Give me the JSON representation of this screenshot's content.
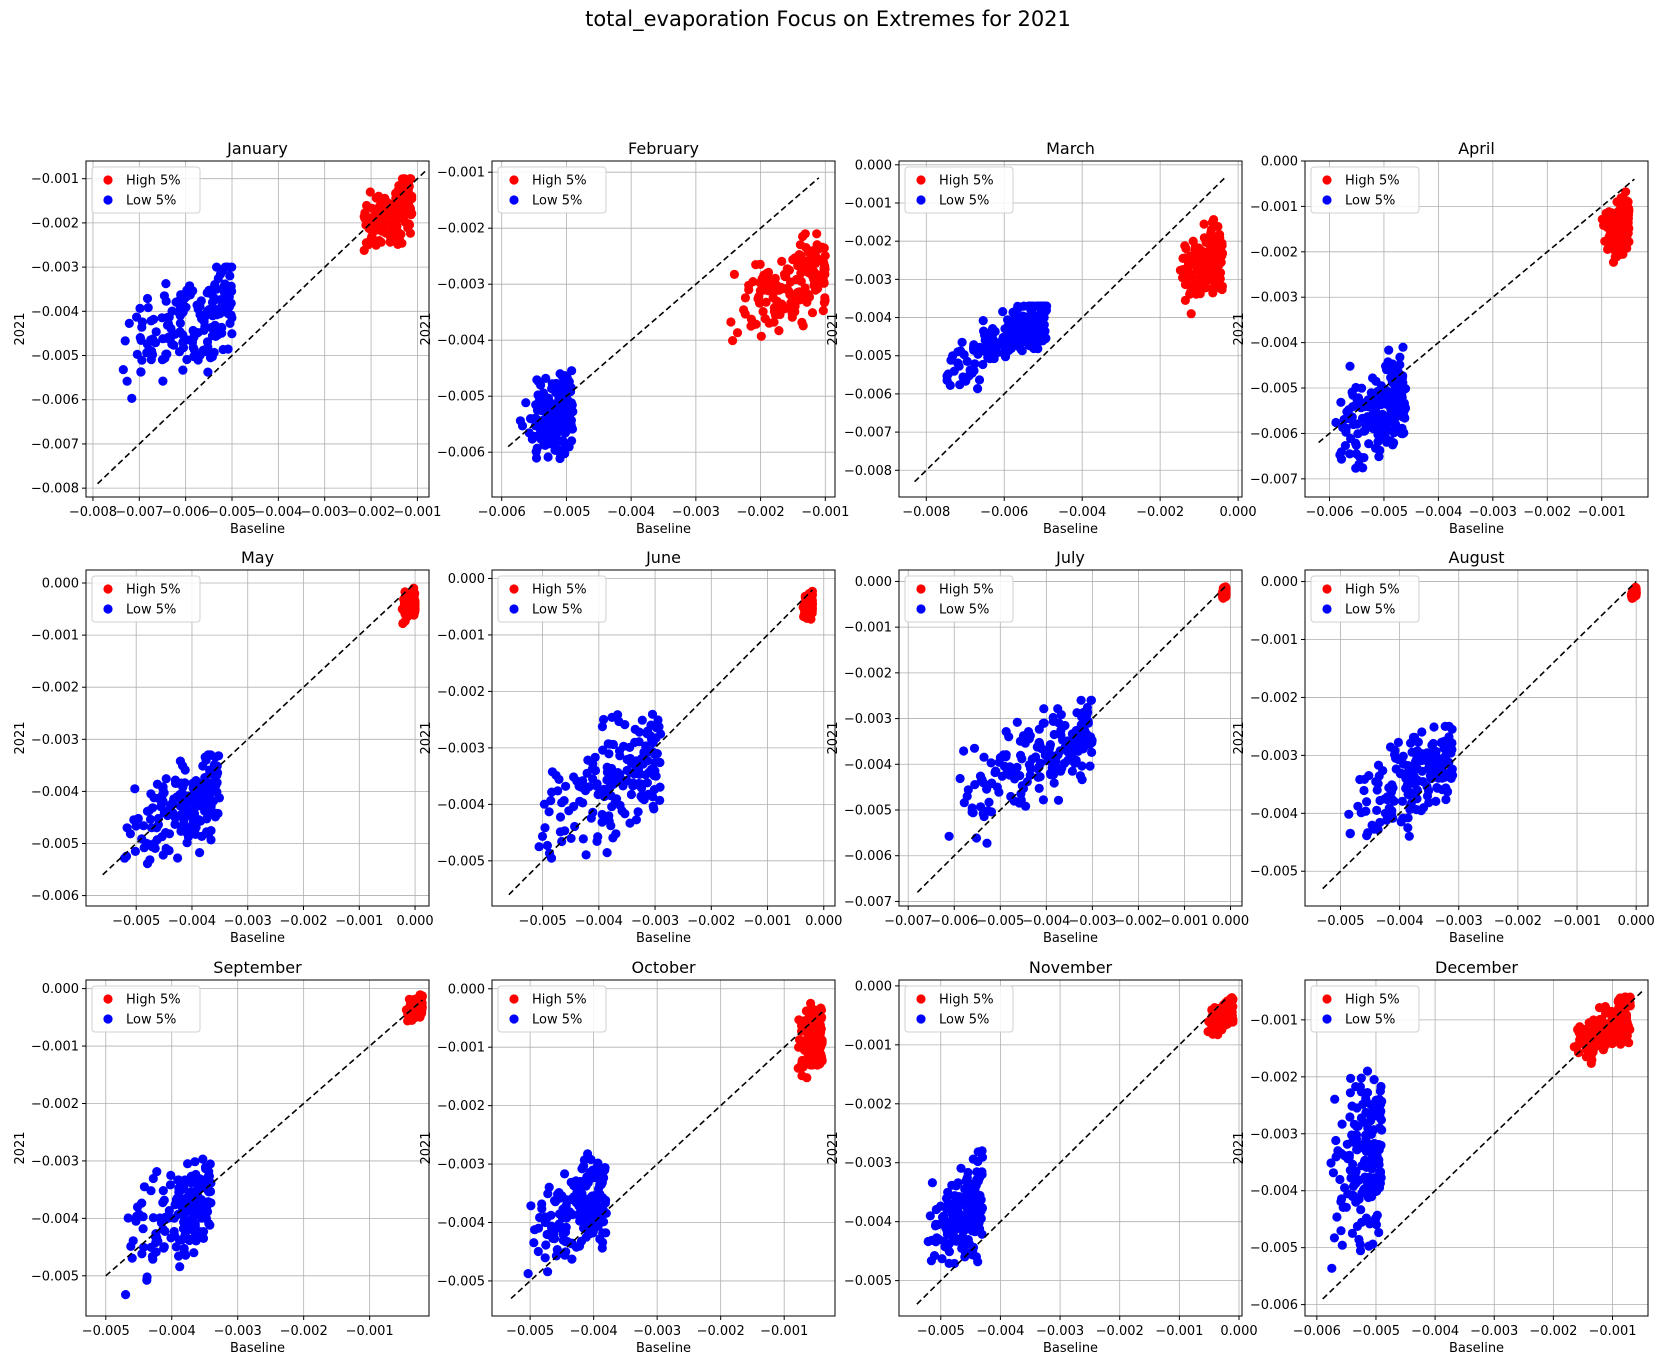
{
  "suptitle": "total_evaporation Focus on Extremes for 2021",
  "colors": {
    "high": "#ff0000",
    "low": "#0000ff",
    "identity": "#000000",
    "grid": "#b0b0b0"
  },
  "chart_data": [
    {
      "type": "scatter",
      "title": "January",
      "xlabel": "Baseline",
      "ylabel": "2021",
      "legend": [
        "High 5%",
        "Low 5%"
      ],
      "legend_loc": "upper left",
      "grid": true,
      "xlim": [
        -0.00815,
        -0.00075
      ],
      "ylim": [
        -0.0082,
        -0.0006
      ],
      "xticks": [
        -0.008,
        -0.007,
        -0.006,
        -0.005,
        -0.004,
        -0.003,
        -0.002,
        -0.001
      ],
      "yticks": [
        -0.008,
        -0.007,
        -0.006,
        -0.005,
        -0.004,
        -0.003,
        -0.002,
        -0.001
      ],
      "identity": [
        -0.0079,
        -0.0008
      ],
      "high": {
        "x": [
          -0.0025,
          -0.0011
        ],
        "y": [
          -0.0029,
          -0.001
        ]
      },
      "low": {
        "x": [
          -0.0078,
          -0.005
        ],
        "y": [
          -0.0061,
          -0.003
        ]
      }
    },
    {
      "type": "scatter",
      "title": "February",
      "xlabel": "Baseline",
      "ylabel": "2021",
      "legend": [
        "High 5%",
        "Low 5%"
      ],
      "legend_loc": "upper left",
      "grid": true,
      "xlim": [
        -0.00615,
        -0.00085
      ],
      "ylim": [
        -0.0068,
        -0.0008
      ],
      "xticks": [
        -0.006,
        -0.005,
        -0.004,
        -0.003,
        -0.002,
        -0.001
      ],
      "yticks": [
        -0.006,
        -0.005,
        -0.004,
        -0.003,
        -0.002,
        -0.001
      ],
      "identity": [
        -0.0059,
        -0.0011
      ],
      "high": {
        "x": [
          -0.0028,
          -0.001
        ],
        "y": [
          -0.0043,
          -0.0021
        ]
      },
      "low": {
        "x": [
          -0.0059,
          -0.0049
        ],
        "y": [
          -0.0066,
          -0.0043
        ]
      }
    },
    {
      "type": "scatter",
      "title": "March",
      "xlabel": "Baseline",
      "ylabel": "2021",
      "legend": [
        "High 5%",
        "Low 5%"
      ],
      "legend_loc": "upper left",
      "grid": true,
      "xlim": [
        -0.0087,
        0.0001
      ],
      "ylim": [
        -0.0087,
        0.0001
      ],
      "xticks": [
        -0.008,
        -0.006,
        -0.004,
        -0.002,
        0.0
      ],
      "yticks": [
        -0.008,
        -0.007,
        -0.006,
        -0.005,
        -0.004,
        -0.003,
        -0.002,
        -0.001,
        0.0
      ],
      "identity": [
        -0.0083,
        -0.0003
      ],
      "high": {
        "x": [
          -0.0017,
          -0.0004
        ],
        "y": [
          -0.004,
          -0.0014
        ]
      },
      "low": {
        "x": [
          -0.0083,
          -0.0049
        ],
        "y": [
          -0.0061,
          -0.0037
        ]
      }
    },
    {
      "type": "scatter",
      "title": "April",
      "xlabel": "Baseline",
      "ylabel": "2021",
      "legend": [
        "High 5%",
        "Low 5%"
      ],
      "legend_loc": "upper left",
      "grid": true,
      "xlim": [
        -0.00645,
        -0.00015
      ],
      "ylim": [
        -0.0074,
        0.0
      ],
      "xticks": [
        -0.006,
        -0.005,
        -0.004,
        -0.003,
        -0.002,
        -0.001
      ],
      "yticks": [
        -0.007,
        -0.006,
        -0.005,
        -0.004,
        -0.003,
        -0.002,
        -0.001,
        0.0
      ],
      "identity": [
        -0.0062,
        -0.0004
      ],
      "high": {
        "x": [
          -0.0011,
          -0.0005
        ],
        "y": [
          -0.0024,
          -0.0006
        ]
      },
      "low": {
        "x": [
          -0.0062,
          -0.0046
        ],
        "y": [
          -0.0072,
          -0.0041
        ]
      }
    },
    {
      "type": "scatter",
      "title": "May",
      "xlabel": "Baseline",
      "ylabel": "2021",
      "legend": [
        "High 5%",
        "Low 5%"
      ],
      "legend_loc": "upper left",
      "grid": true,
      "xlim": [
        -0.0059,
        0.00025
      ],
      "ylim": [
        -0.0062,
        0.00025
      ],
      "xticks": [
        -0.005,
        -0.004,
        -0.003,
        -0.002,
        -0.001,
        0.0
      ],
      "yticks": [
        -0.006,
        -0.005,
        -0.004,
        -0.003,
        -0.002,
        -0.001,
        0.0
      ],
      "identity": [
        -0.0056,
        0.0
      ],
      "high": {
        "x": [
          -0.0003,
          0.0
        ],
        "y": [
          -0.0008,
          -0.0001
        ]
      },
      "low": {
        "x": [
          -0.0056,
          -0.0035
        ],
        "y": [
          -0.0059,
          -0.0033
        ]
      }
    },
    {
      "type": "scatter",
      "title": "June",
      "xlabel": "Baseline",
      "ylabel": "2021",
      "legend": [
        "High 5%",
        "Low 5%"
      ],
      "legend_loc": "upper left",
      "grid": true,
      "xlim": [
        -0.0059,
        0.0002
      ],
      "ylim": [
        -0.0058,
        0.00015
      ],
      "xticks": [
        -0.005,
        -0.004,
        -0.003,
        -0.002,
        -0.001,
        0.0
      ],
      "yticks": [
        -0.005,
        -0.004,
        -0.003,
        -0.002,
        -0.001,
        0.0
      ],
      "identity": [
        -0.0056,
        -0.0002
      ],
      "high": {
        "x": [
          -0.0004,
          -0.0002
        ],
        "y": [
          -0.0008,
          -0.0002
        ]
      },
      "low": {
        "x": [
          -0.0056,
          -0.0029
        ],
        "y": [
          -0.0055,
          -0.0024
        ]
      }
    },
    {
      "type": "scatter",
      "title": "July",
      "xlabel": "Baseline",
      "ylabel": "2021",
      "legend": [
        "High 5%",
        "Low 5%"
      ],
      "legend_loc": "upper left",
      "grid": true,
      "xlim": [
        -0.0072,
        0.00025
      ],
      "ylim": [
        -0.0071,
        0.00025
      ],
      "xticks": [
        -0.007,
        -0.006,
        -0.005,
        -0.004,
        -0.003,
        -0.002,
        -0.001,
        0.0
      ],
      "yticks": [
        -0.007,
        -0.006,
        -0.005,
        -0.004,
        -0.003,
        -0.002,
        -0.001,
        0.0
      ],
      "identity": [
        -0.0068,
        -0.0001
      ],
      "high": {
        "x": [
          -0.0002,
          -0.0001
        ],
        "y": [
          -0.0004,
          -0.0001
        ]
      },
      "low": {
        "x": [
          -0.0069,
          -0.003
        ],
        "y": [
          -0.0061,
          -0.0026
        ]
      }
    },
    {
      "type": "scatter",
      "title": "August",
      "xlabel": "Baseline",
      "ylabel": "2021",
      "legend": [
        "High 5%",
        "Low 5%"
      ],
      "legend_loc": "upper left",
      "grid": true,
      "xlim": [
        -0.0056,
        0.0002
      ],
      "ylim": [
        -0.0056,
        0.0002
      ],
      "xticks": [
        -0.005,
        -0.004,
        -0.003,
        -0.002,
        -0.001,
        0.0
      ],
      "yticks": [
        -0.005,
        -0.004,
        -0.003,
        -0.002,
        -0.001,
        0.0
      ],
      "identity": [
        -0.0053,
        0.0
      ],
      "high": {
        "x": [
          -0.0001,
          0.0
        ],
        "y": [
          -0.0003,
          -0.0001
        ]
      },
      "low": {
        "x": [
          -0.0053,
          -0.0031
        ],
        "y": [
          -0.0048,
          -0.0025
        ]
      }
    },
    {
      "type": "scatter",
      "title": "September",
      "xlabel": "Baseline",
      "ylabel": "2021",
      "legend": [
        "High 5%",
        "Low 5%"
      ],
      "legend_loc": "upper left",
      "grid": true,
      "xlim": [
        -0.0053,
        -0.0001
      ],
      "ylim": [
        -0.0057,
        0.00015
      ],
      "xticks": [
        -0.005,
        -0.004,
        -0.003,
        -0.002,
        -0.001
      ],
      "yticks": [
        -0.005,
        -0.004,
        -0.003,
        -0.002,
        -0.001,
        0.0
      ],
      "identity": [
        -0.005,
        -0.0002
      ],
      "high": {
        "x": [
          -0.0005,
          -0.0002
        ],
        "y": [
          -0.0006,
          -0.0001
        ]
      },
      "low": {
        "x": [
          -0.005,
          -0.0034
        ],
        "y": [
          -0.0054,
          -0.0029
        ]
      }
    },
    {
      "type": "scatter",
      "title": "October",
      "xlabel": "Baseline",
      "ylabel": "2021",
      "legend": [
        "High 5%",
        "Low 5%"
      ],
      "legend_loc": "upper left",
      "grid": true,
      "xlim": [
        -0.0056,
        -0.0002
      ],
      "ylim": [
        -0.0056,
        0.00015
      ],
      "xticks": [
        -0.005,
        -0.004,
        -0.003,
        -0.002,
        -0.001
      ],
      "yticks": [
        -0.005,
        -0.004,
        -0.003,
        -0.002,
        -0.001,
        0.0
      ],
      "identity": [
        -0.0053,
        -0.0004
      ],
      "high": {
        "x": [
          -0.0009,
          -0.0004
        ],
        "y": [
          -0.0017,
          -0.0001
        ]
      },
      "low": {
        "x": [
          -0.0053,
          -0.0038
        ],
        "y": [
          -0.0051,
          -0.0028
        ]
      }
    },
    {
      "type": "scatter",
      "title": "November",
      "xlabel": "Baseline",
      "ylabel": "2021",
      "legend": [
        "High 5%",
        "Low 5%"
      ],
      "legend_loc": "upper left",
      "grid": true,
      "xlim": [
        -0.0057,
        5e-05
      ],
      "ylim": [
        -0.0056,
        0.0001
      ],
      "xticks": [
        -0.005,
        -0.004,
        -0.003,
        -0.002,
        -0.001,
        0.0
      ],
      "yticks": [
        -0.005,
        -0.004,
        -0.003,
        -0.002,
        -0.001,
        0.0
      ],
      "identity": [
        -0.0054,
        -0.0002
      ],
      "high": {
        "x": [
          -0.0006,
          -0.0001
        ],
        "y": [
          -0.0009,
          -0.0002
        ]
      },
      "low": {
        "x": [
          -0.0054,
          -0.0043
        ],
        "y": [
          -0.0052,
          -0.0028
        ]
      }
    },
    {
      "type": "scatter",
      "title": "December",
      "xlabel": "Baseline",
      "ylabel": "2021",
      "legend": [
        "High 5%",
        "Low 5%"
      ],
      "legend_loc": "upper left",
      "grid": true,
      "xlim": [
        -0.0062,
        -0.0004
      ],
      "ylim": [
        -0.0062,
        -0.0003
      ],
      "xticks": [
        -0.006,
        -0.005,
        -0.004,
        -0.003,
        -0.002,
        -0.001
      ],
      "yticks": [
        -0.006,
        -0.005,
        -0.004,
        -0.003,
        -0.002,
        -0.001
      ],
      "identity": [
        -0.0059,
        -0.0005
      ],
      "high": {
        "x": [
          -0.0019,
          -0.0007
        ],
        "y": [
          -0.0019,
          -0.0006
        ]
      },
      "low": {
        "x": [
          -0.006,
          -0.0049
        ],
        "y": [
          -0.0057,
          -0.0014
        ]
      }
    }
  ]
}
